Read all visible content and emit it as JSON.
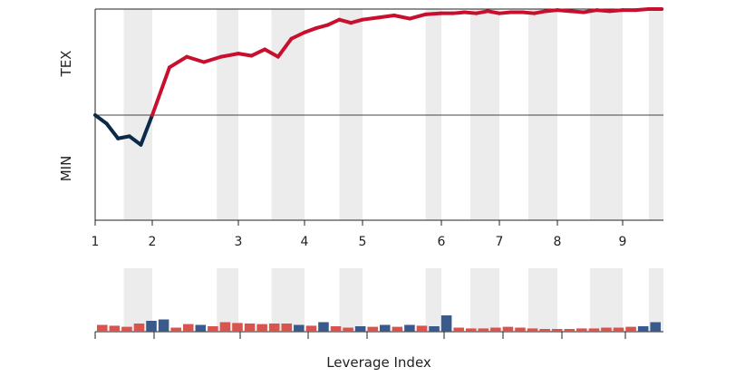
{
  "chart_data": [
    {
      "type": "line",
      "title": "",
      "ylabel_top": "TEX",
      "ylabel_bottom": "MIN",
      "x_ticks": [
        "1",
        "2",
        "3",
        "4",
        "5",
        "6",
        "7",
        "8",
        "9"
      ],
      "shaded_bands": [
        [
          1.5,
          2.0
        ],
        [
          2.75,
          3.0
        ],
        [
          3.5,
          4.0
        ],
        [
          4.6,
          5.0
        ],
        [
          5.8,
          6.0
        ],
        [
          6.5,
          7.0
        ],
        [
          7.5,
          8.0
        ],
        [
          8.5,
          9.0
        ],
        [
          9.4,
          9.7
        ]
      ],
      "baseline": 0,
      "ylim": [
        -1.0,
        1.0
      ],
      "series": [
        {
          "color_above": "#c8102e",
          "color_below": "#0b2a4a",
          "x": [
            1.0,
            1.2,
            1.4,
            1.6,
            1.8,
            2.0,
            2.2,
            2.4,
            2.6,
            2.8,
            3.0,
            3.2,
            3.4,
            3.6,
            3.8,
            4.0,
            4.2,
            4.4,
            4.6,
            4.8,
            5.0,
            5.2,
            5.4,
            5.6,
            5.8,
            6.0,
            6.2,
            6.4,
            6.6,
            6.8,
            7.0,
            7.2,
            7.4,
            7.6,
            7.8,
            8.0,
            8.2,
            8.4,
            8.6,
            8.8,
            9.0,
            9.2,
            9.4,
            9.6
          ],
          "y": [
            0.0,
            -0.08,
            -0.22,
            -0.2,
            -0.28,
            0.0,
            0.45,
            0.55,
            0.5,
            0.55,
            0.58,
            0.56,
            0.62,
            0.55,
            0.72,
            0.78,
            0.82,
            0.85,
            0.9,
            0.87,
            0.9,
            0.92,
            0.94,
            0.91,
            0.95,
            0.96,
            0.96,
            0.97,
            0.96,
            0.98,
            0.96,
            0.97,
            0.97,
            0.96,
            0.98,
            0.99,
            0.98,
            0.97,
            0.99,
            0.98,
            0.99,
            0.99,
            1.0,
            1.0
          ]
        }
      ]
    },
    {
      "type": "bar",
      "xlabel": "Leverage Index",
      "bar_colors": {
        "positive": "#d9534f",
        "negative": "#3a5a8c"
      },
      "shaded_bands": [
        [
          1.5,
          2.0
        ],
        [
          2.75,
          3.0
        ],
        [
          3.5,
          4.0
        ],
        [
          4.6,
          5.0
        ],
        [
          5.8,
          6.0
        ],
        [
          6.5,
          7.0
        ],
        [
          7.5,
          8.0
        ],
        [
          8.5,
          9.0
        ],
        [
          9.4,
          9.7
        ]
      ],
      "x_ticks_count": 9,
      "ylim": [
        0,
        1.0
      ],
      "values": [
        0.25,
        0.22,
        0.18,
        0.3,
        0.4,
        0.45,
        0.15,
        0.28,
        0.25,
        0.2,
        0.35,
        0.32,
        0.3,
        0.28,
        0.3,
        0.3,
        0.25,
        0.22,
        0.35,
        0.2,
        0.15,
        0.2,
        0.18,
        0.25,
        0.18,
        0.25,
        0.22,
        0.2,
        0.6,
        0.15,
        0.12,
        0.12,
        0.15,
        0.18,
        0.15,
        0.12,
        0.1,
        0.1,
        0.1,
        0.12,
        0.12,
        0.15,
        0.15,
        0.18,
        0.2,
        0.35
      ],
      "signs": [
        1,
        1,
        1,
        1,
        -1,
        -1,
        1,
        1,
        -1,
        1,
        1,
        1,
        1,
        1,
        1,
        1,
        -1,
        1,
        -1,
        1,
        1,
        -1,
        1,
        -1,
        1,
        -1,
        1,
        -1,
        -1,
        1,
        1,
        1,
        1,
        1,
        1,
        1,
        1,
        1,
        1,
        1,
        1,
        1,
        1,
        1,
        -1,
        -1
      ]
    }
  ]
}
